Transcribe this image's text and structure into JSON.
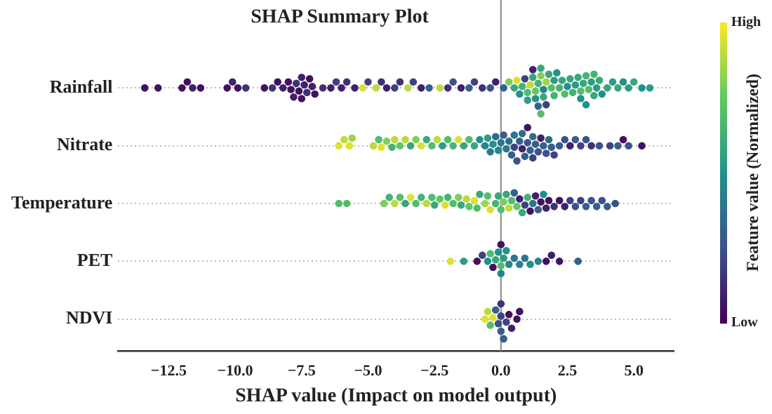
{
  "chart_data": {
    "type": "scatter",
    "title": "SHAP Summary Plot",
    "xlabel": "SHAP value (Impact on model output)",
    "clabel": "Feature value (Normalized)",
    "orientation": "horizontal",
    "categories": [
      "Rainfall",
      "Nitrate",
      "Temperature",
      "PET",
      "NDVI"
    ],
    "xlim": [
      -14.4,
      6.5
    ],
    "xticks": [
      {
        "value": -12.5,
        "label": "−12.5"
      },
      {
        "value": -10,
        "label": "−10.0"
      },
      {
        "value": -7.5,
        "label": "−7.5"
      },
      {
        "value": -5,
        "label": "−5.0"
      },
      {
        "value": -2.5,
        "label": "−2.5"
      },
      {
        "value": 0,
        "label": "0.0"
      },
      {
        "value": 2.5,
        "label": "2.5"
      },
      {
        "value": 5,
        "label": "5.0"
      }
    ],
    "clim": [
      0,
      1
    ],
    "cticks": [
      {
        "value": 0,
        "label": "Low"
      },
      {
        "value": 1,
        "label": "High"
      }
    ],
    "grid": "y",
    "marker": "circle",
    "legend": false,
    "ref_lines": [
      {
        "axis": "x",
        "value": 0,
        "color": "#999999"
      }
    ],
    "series": [
      {
        "x": [
          "Rainfall",
          "Rainfall",
          "Rainfall",
          "Rainfall",
          "Rainfall",
          "Rainfall",
          "Rainfall",
          "Rainfall",
          "Rainfall",
          "Rainfall",
          "Rainfall",
          "Rainfall",
          "Rainfall",
          "Rainfall",
          "Rainfall",
          "Rainfall",
          "Rainfall",
          "Rainfall",
          "Rainfall",
          "Rainfall",
          "Rainfall",
          "Rainfall",
          "Rainfall",
          "Rainfall",
          "Rainfall",
          "Rainfall",
          "Rainfall",
          "Rainfall",
          "Rainfall",
          "Rainfall",
          "Rainfall",
          "Rainfall",
          "Rainfall",
          "Rainfall",
          "Rainfall",
          "Rainfall",
          "Rainfall",
          "Rainfall",
          "Rainfall",
          "Rainfall",
          "Rainfall",
          "Rainfall",
          "Rainfall",
          "Rainfall",
          "Rainfall",
          "Rainfall",
          "Rainfall",
          "Rainfall",
          "Rainfall",
          "Rainfall",
          "Rainfall",
          "Rainfall",
          "Rainfall",
          "Rainfall",
          "Rainfall",
          "Rainfall",
          "Rainfall",
          "Rainfall",
          "Rainfall",
          "Rainfall",
          "Rainfall",
          "Rainfall",
          "Rainfall",
          "Rainfall",
          "Rainfall",
          "Rainfall",
          "Rainfall",
          "Rainfall",
          "Rainfall",
          "Rainfall",
          "Rainfall",
          "Rainfall",
          "Rainfall",
          "Rainfall",
          "Rainfall",
          "Rainfall",
          "Rainfall",
          "Rainfall",
          "Rainfall",
          "Rainfall",
          "Rainfall",
          "Rainfall",
          "Rainfall",
          "Rainfall",
          "Rainfall",
          "Rainfall",
          "Rainfall",
          "Rainfall",
          "Rainfall",
          "Rainfall",
          "Rainfall",
          "Rainfall",
          "Rainfall",
          "Rainfall",
          "Rainfall",
          "Rainfall",
          "Rainfall",
          "Rainfall",
          "Rainfall",
          "Rainfall",
          "Rainfall",
          "Rainfall",
          "Rainfall",
          "Rainfall",
          "Rainfall",
          "Rainfall",
          "Rainfall",
          "Rainfall"
        ],
        "values": [
          -13.4,
          -12.9,
          -12.0,
          -11.8,
          -11.6,
          -11.3,
          -10.3,
          -10.1,
          -9.9,
          -9.6,
          -8.9,
          -8.6,
          -8.4,
          -8.2,
          -8.0,
          -7.9,
          -7.8,
          -7.7,
          -7.6,
          -7.5,
          -7.5,
          -7.4,
          -7.3,
          -7.2,
          -7.1,
          -7.0,
          -6.7,
          -6.4,
          -6.2,
          -6.0,
          -5.8,
          -5.5,
          -5.2,
          -5.0,
          -4.7,
          -4.5,
          -4.3,
          -4.0,
          -3.8,
          -3.5,
          -3.3,
          -3.0,
          -2.7,
          -2.3,
          -2.0,
          -1.8,
          -1.5,
          -1.2,
          -1.0,
          -0.7,
          -0.4,
          -0.2,
          0.1,
          0.3,
          0.5,
          0.6,
          0.7,
          0.8,
          0.9,
          1.0,
          1.0,
          1.1,
          1.2,
          1.2,
          1.3,
          1.3,
          1.4,
          1.4,
          1.5,
          1.5,
          1.5,
          1.6,
          1.6,
          1.7,
          1.7,
          1.8,
          1.9,
          2.0,
          2.0,
          2.1,
          2.2,
          2.3,
          2.4,
          2.5,
          2.6,
          2.7,
          2.8,
          2.9,
          3.0,
          3.0,
          3.1,
          3.2,
          3.2,
          3.3,
          3.4,
          3.5,
          3.5,
          3.6,
          3.7,
          3.8,
          4.0,
          4.2,
          4.4,
          4.6,
          4.8,
          5.0,
          5.3,
          5.6
        ],
        "cvalues": [
          0.05,
          0.05,
          0.05,
          0.05,
          0.1,
          0.05,
          0.05,
          0.1,
          0.05,
          0.15,
          0.05,
          0.15,
          0.05,
          0.1,
          0.05,
          0.05,
          0.1,
          0.15,
          0.05,
          0.1,
          0.05,
          0.1,
          0.15,
          0.05,
          0.1,
          0.05,
          0.15,
          0.1,
          0.2,
          0.1,
          0.15,
          0.1,
          0.95,
          0.2,
          0.9,
          0.15,
          0.1,
          0.2,
          0.15,
          0.9,
          0.2,
          0.1,
          0.3,
          0.9,
          0.15,
          0.25,
          0.1,
          0.3,
          0.2,
          0.15,
          0.25,
          0.1,
          0.3,
          0.8,
          0.6,
          0.95,
          0.5,
          0.65,
          0.2,
          0.7,
          0.55,
          0.9,
          0.6,
          0.1,
          0.75,
          0.5,
          0.65,
          0.3,
          0.8,
          0.6,
          0.7,
          0.45,
          0.6,
          0.85,
          0.2,
          0.6,
          0.7,
          0.55,
          0.65,
          0.5,
          0.65,
          0.6,
          0.7,
          0.5,
          0.6,
          0.65,
          0.55,
          0.6,
          0.7,
          0.5,
          0.6,
          0.65,
          0.5,
          0.7,
          0.55,
          0.6,
          0.65,
          0.55,
          0.6,
          0.5,
          0.6,
          0.55,
          0.6,
          0.5,
          0.55,
          0.6,
          0.5,
          0.55
        ],
        "colors": [
          "#42115f",
          "#42115f",
          "#42115f",
          "#42115f",
          "#40216a",
          "#42115f",
          "#42115f",
          "#40216a",
          "#42115f",
          "#3f3275",
          "#42115f",
          "#3f3275",
          "#42115f",
          "#40216a",
          "#42115f",
          "#42115f",
          "#40216a",
          "#3f3275",
          "#42115f",
          "#40216a",
          "#42115f",
          "#40216a",
          "#3f3275",
          "#42115f",
          "#40216a",
          "#42115f",
          "#3f3275",
          "#40216a",
          "#3d4280",
          "#40216a",
          "#3f3275",
          "#40216a",
          "#dde131",
          "#3d4280",
          "#bddb3d",
          "#3f3275",
          "#40216a",
          "#3d4280",
          "#3f3275",
          "#bddb3d",
          "#3d4280",
          "#40216a",
          "#365f8b",
          "#bddb3d",
          "#3f3275",
          "#3b528b",
          "#40216a",
          "#365f8b",
          "#3d4280",
          "#3f3275",
          "#3b528b",
          "#40216a",
          "#365f8b",
          "#7ecf56",
          "#39a77b",
          "#dde131",
          "#21918c",
          "#46b373",
          "#3d4280",
          "#52be6a",
          "#2d9c84",
          "#bddb3d",
          "#39a77b",
          "#40216a",
          "#5ec962",
          "#21918c",
          "#46b373",
          "#365f8b",
          "#7ecf56",
          "#39a77b",
          "#52be6a",
          "#26848c",
          "#39a77b",
          "#9ed54a",
          "#3d4280",
          "#39a77b",
          "#52be6a",
          "#2d9c84",
          "#46b373",
          "#21918c",
          "#46b373",
          "#39a77b",
          "#52be6a",
          "#21918c",
          "#39a77b",
          "#46b373",
          "#2d9c84",
          "#39a77b",
          "#52be6a",
          "#21918c",
          "#39a77b",
          "#46b373",
          "#21918c",
          "#52be6a",
          "#2d9c84",
          "#39a77b",
          "#46b373",
          "#2d9c84",
          "#39a77b",
          "#21918c",
          "#39a77b",
          "#2d9c84",
          "#39a77b",
          "#21918c",
          "#2d9c84",
          "#39a77b",
          "#21918c",
          "#2d9c84"
        ]
      },
      {
        "x": [
          "Nitrate",
          "Nitrate",
          "Nitrate",
          "Nitrate",
          "Nitrate",
          "Nitrate",
          "Nitrate",
          "Nitrate",
          "Nitrate",
          "Nitrate",
          "Nitrate",
          "Nitrate",
          "Nitrate",
          "Nitrate",
          "Nitrate",
          "Nitrate",
          "Nitrate",
          "Nitrate",
          "Nitrate",
          "Nitrate",
          "Nitrate",
          "Nitrate",
          "Nitrate",
          "Nitrate",
          "Nitrate",
          "Nitrate",
          "Nitrate",
          "Nitrate",
          "Nitrate",
          "Nitrate",
          "Nitrate",
          "Nitrate",
          "Nitrate",
          "Nitrate",
          "Nitrate",
          "Nitrate",
          "Nitrate",
          "Nitrate",
          "Nitrate",
          "Nitrate",
          "Nitrate",
          "Nitrate",
          "Nitrate",
          "Nitrate",
          "Nitrate",
          "Nitrate",
          "Nitrate",
          "Nitrate",
          "Nitrate",
          "Nitrate",
          "Nitrate",
          "Nitrate",
          "Nitrate",
          "Nitrate",
          "Nitrate",
          "Nitrate",
          "Nitrate",
          "Nitrate",
          "Nitrate",
          "Nitrate",
          "Nitrate",
          "Nitrate",
          "Nitrate",
          "Nitrate",
          "Nitrate",
          "Nitrate",
          "Nitrate",
          "Nitrate",
          "Nitrate",
          "Nitrate"
        ],
        "values": [
          -6.1,
          -5.9,
          -5.7,
          -5.6,
          -4.8,
          -4.6,
          -4.5,
          -4.3,
          -4.1,
          -4.0,
          -3.8,
          -3.6,
          -3.4,
          -3.2,
          -3.0,
          -2.8,
          -2.6,
          -2.4,
          -2.2,
          -2.0,
          -1.8,
          -1.6,
          -1.4,
          -1.2,
          -1.0,
          -0.8,
          -0.6,
          -0.5,
          -0.4,
          -0.3,
          -0.2,
          -0.1,
          0.0,
          0.1,
          0.2,
          0.3,
          0.4,
          0.5,
          0.5,
          0.6,
          0.7,
          0.8,
          0.8,
          0.9,
          1.0,
          1.0,
          1.1,
          1.2,
          1.2,
          1.3,
          1.4,
          1.5,
          1.6,
          1.7,
          1.8,
          1.9,
          2.0,
          2.2,
          2.4,
          2.6,
          2.8,
          3.0,
          3.2,
          3.4,
          3.7,
          4.1,
          4.4,
          4.6,
          4.8,
          5.3
        ],
        "cvalues": [
          0.95,
          0.9,
          0.95,
          0.85,
          0.9,
          0.7,
          0.95,
          0.8,
          0.65,
          0.9,
          0.75,
          0.9,
          0.6,
          0.8,
          0.95,
          0.6,
          0.7,
          0.9,
          0.55,
          0.7,
          0.65,
          0.95,
          0.6,
          0.7,
          0.6,
          0.5,
          0.45,
          0.55,
          0.4,
          0.5,
          0.35,
          0.45,
          0.4,
          0.3,
          0.4,
          0.35,
          0.3,
          0.2,
          0.4,
          0.25,
          0.3,
          0.1,
          0.35,
          0.3,
          0.25,
          0.05,
          0.3,
          0.35,
          0.2,
          0.3,
          0.25,
          0.1,
          0.3,
          0.25,
          0.35,
          0.3,
          0.2,
          0.3,
          0.25,
          0.1,
          0.3,
          0.2,
          0.25,
          0.15,
          0.25,
          0.2,
          0.3,
          0.05,
          0.25,
          0.05
        ],
        "colors": [
          "#dde131",
          "#bddb3d",
          "#dde131",
          "#9ed54a",
          "#bddb3d",
          "#52be6a",
          "#dde131",
          "#7ecf56",
          "#46b373",
          "#bddb3d",
          "#5ec962",
          "#bddb3d",
          "#39a77b",
          "#7ecf56",
          "#dde131",
          "#39a77b",
          "#52be6a",
          "#bddb3d",
          "#2d9c84",
          "#52be6a",
          "#46b373",
          "#dde131",
          "#39a77b",
          "#52be6a",
          "#39a77b",
          "#21918c",
          "#26848c",
          "#2d9c84",
          "#2b788c",
          "#21918c",
          "#316b8b",
          "#26848c",
          "#2b788c",
          "#365f8b",
          "#2b788c",
          "#316b8b",
          "#365f8b",
          "#3d4280",
          "#2b788c",
          "#3b528b",
          "#365f8b",
          "#40216a",
          "#316b8b",
          "#365f8b",
          "#3b528b",
          "#42115f",
          "#365f8b",
          "#316b8b",
          "#3d4280",
          "#365f8b",
          "#3b528b",
          "#40216a",
          "#365f8b",
          "#3b528b",
          "#316b8b",
          "#365f8b",
          "#3d4280",
          "#365f8b",
          "#3b528b",
          "#40216a",
          "#365f8b",
          "#3d4280",
          "#3b528b",
          "#3f3275",
          "#3b528b",
          "#3d4280",
          "#365f8b",
          "#42115f",
          "#3b528b",
          "#42115f"
        ]
      },
      {
        "x": [
          "Temperature",
          "Temperature",
          "Temperature",
          "Temperature",
          "Temperature",
          "Temperature",
          "Temperature",
          "Temperature",
          "Temperature",
          "Temperature",
          "Temperature",
          "Temperature",
          "Temperature",
          "Temperature",
          "Temperature",
          "Temperature",
          "Temperature",
          "Temperature",
          "Temperature",
          "Temperature",
          "Temperature",
          "Temperature",
          "Temperature",
          "Temperature",
          "Temperature",
          "Temperature",
          "Temperature",
          "Temperature",
          "Temperature",
          "Temperature",
          "Temperature",
          "Temperature",
          "Temperature",
          "Temperature",
          "Temperature",
          "Temperature",
          "Temperature",
          "Temperature",
          "Temperature",
          "Temperature",
          "Temperature",
          "Temperature",
          "Temperature",
          "Temperature",
          "Temperature",
          "Temperature",
          "Temperature",
          "Temperature",
          "Temperature",
          "Temperature",
          "Temperature",
          "Temperature",
          "Temperature",
          "Temperature",
          "Temperature",
          "Temperature",
          "Temperature",
          "Temperature",
          "Temperature",
          "Temperature"
        ],
        "values": [
          -6.1,
          -5.8,
          -4.4,
          -4.2,
          -4.0,
          -3.8,
          -3.6,
          -3.4,
          -3.2,
          -3.0,
          -2.8,
          -2.6,
          -2.5,
          -2.3,
          -2.1,
          -2.0,
          -1.8,
          -1.6,
          -1.5,
          -1.3,
          -1.2,
          -1.0,
          -0.9,
          -0.8,
          -0.6,
          -0.5,
          -0.4,
          -0.2,
          -0.1,
          0.0,
          0.1,
          0.2,
          0.3,
          0.4,
          0.5,
          0.6,
          0.7,
          0.8,
          0.9,
          1.0,
          1.1,
          1.2,
          1.3,
          1.4,
          1.5,
          1.6,
          1.7,
          1.8,
          2.0,
          2.2,
          2.4,
          2.6,
          2.8,
          3.0,
          3.2,
          3.4,
          3.6,
          3.8,
          4.0,
          4.3
        ],
        "cvalues": [
          0.7,
          0.7,
          0.8,
          0.65,
          0.9,
          0.7,
          0.6,
          0.95,
          0.7,
          0.65,
          0.9,
          0.7,
          0.6,
          0.75,
          0.95,
          0.65,
          0.7,
          0.8,
          0.6,
          0.9,
          0.75,
          0.95,
          0.7,
          0.6,
          0.85,
          0.7,
          0.95,
          0.65,
          0.6,
          0.7,
          0.8,
          0.6,
          0.9,
          0.7,
          0.3,
          0.75,
          0.1,
          0.6,
          0.2,
          0.65,
          0.05,
          0.4,
          0.1,
          0.3,
          0.05,
          0.5,
          0.1,
          0.05,
          0.15,
          0.05,
          0.1,
          0.2,
          0.25,
          0.2,
          0.3,
          0.25,
          0.3,
          0.25,
          0.3,
          0.25
        ],
        "colors": [
          "#52be6a",
          "#52be6a",
          "#7ecf56",
          "#46b373",
          "#bddb3d",
          "#52be6a",
          "#39a77b",
          "#dde131",
          "#52be6a",
          "#46b373",
          "#bddb3d",
          "#52be6a",
          "#39a77b",
          "#5ec962",
          "#dde131",
          "#46b373",
          "#52be6a",
          "#7ecf56",
          "#39a77b",
          "#bddb3d",
          "#5ec962",
          "#dde131",
          "#52be6a",
          "#39a77b",
          "#9ed54a",
          "#52be6a",
          "#dde131",
          "#46b373",
          "#39a77b",
          "#52be6a",
          "#7ecf56",
          "#39a77b",
          "#bddb3d",
          "#52be6a",
          "#365f8b",
          "#5ec962",
          "#40216a",
          "#39a77b",
          "#3d4280",
          "#46b373",
          "#42115f",
          "#2b788c",
          "#40216a",
          "#365f8b",
          "#42115f",
          "#21918c",
          "#40216a",
          "#42115f",
          "#3f3275",
          "#42115f",
          "#40216a",
          "#3d4280",
          "#3b528b",
          "#3d4280",
          "#365f8b",
          "#3b528b",
          "#365f8b",
          "#3b528b",
          "#365f8b",
          "#3b528b"
        ]
      },
      {
        "x": [
          "PET",
          "PET",
          "PET",
          "PET",
          "PET",
          "PET",
          "PET",
          "PET",
          "PET",
          "PET",
          "PET",
          "PET",
          "PET",
          "PET",
          "PET",
          "PET",
          "PET",
          "PET",
          "PET",
          "PET",
          "PET",
          "PET",
          "PET",
          "PET"
        ],
        "values": [
          -1.9,
          -1.4,
          -0.9,
          -0.7,
          -0.5,
          -0.4,
          -0.3,
          -0.2,
          -0.1,
          0.0,
          0.0,
          0.0,
          0.1,
          0.2,
          0.3,
          0.5,
          0.7,
          0.9,
          1.1,
          1.4,
          1.7,
          1.9,
          2.2,
          2.9
        ],
        "cvalues": [
          0.95,
          0.55,
          0.05,
          0.2,
          0.5,
          0.7,
          0.05,
          0.6,
          0.5,
          0.7,
          0.45,
          0.05,
          0.55,
          0.5,
          0.45,
          0.4,
          0.45,
          0.4,
          0.5,
          0.45,
          0.05,
          0.1,
          0.05,
          0.3
        ],
        "colors": [
          "#dde131",
          "#2d9c84",
          "#42115f",
          "#3d4280",
          "#21918c",
          "#52be6a",
          "#42115f",
          "#39a77b",
          "#21918c",
          "#52be6a",
          "#26848c",
          "#42115f",
          "#2d9c84",
          "#21918c",
          "#26848c",
          "#2b788c",
          "#26848c",
          "#2b788c",
          "#21918c",
          "#26848c",
          "#42115f",
          "#40216a",
          "#42115f",
          "#365f8b"
        ]
      },
      {
        "x": [
          "NDVI",
          "NDVI",
          "NDVI",
          "NDVI",
          "NDVI",
          "NDVI",
          "NDVI",
          "NDVI",
          "NDVI",
          "NDVI",
          "NDVI",
          "NDVI",
          "NDVI",
          "NDVI",
          "NDVI"
        ],
        "values": [
          -0.6,
          -0.5,
          -0.4,
          -0.3,
          -0.2,
          -0.1,
          0.0,
          0.0,
          0.0,
          0.1,
          0.2,
          0.3,
          0.4,
          0.6,
          0.7
        ],
        "cvalues": [
          0.95,
          0.9,
          0.7,
          0.95,
          0.3,
          0.25,
          0.2,
          0.3,
          0.15,
          0.3,
          0.2,
          0.05,
          0.1,
          0.05,
          0.05
        ],
        "colors": [
          "#dde131",
          "#bddb3d",
          "#52be6a",
          "#dde131",
          "#365f8b",
          "#3b528b",
          "#3d4280",
          "#365f8b",
          "#3f3275",
          "#365f8b",
          "#3d4280",
          "#42115f",
          "#40216a",
          "#42115f",
          "#42115f"
        ]
      }
    ]
  }
}
